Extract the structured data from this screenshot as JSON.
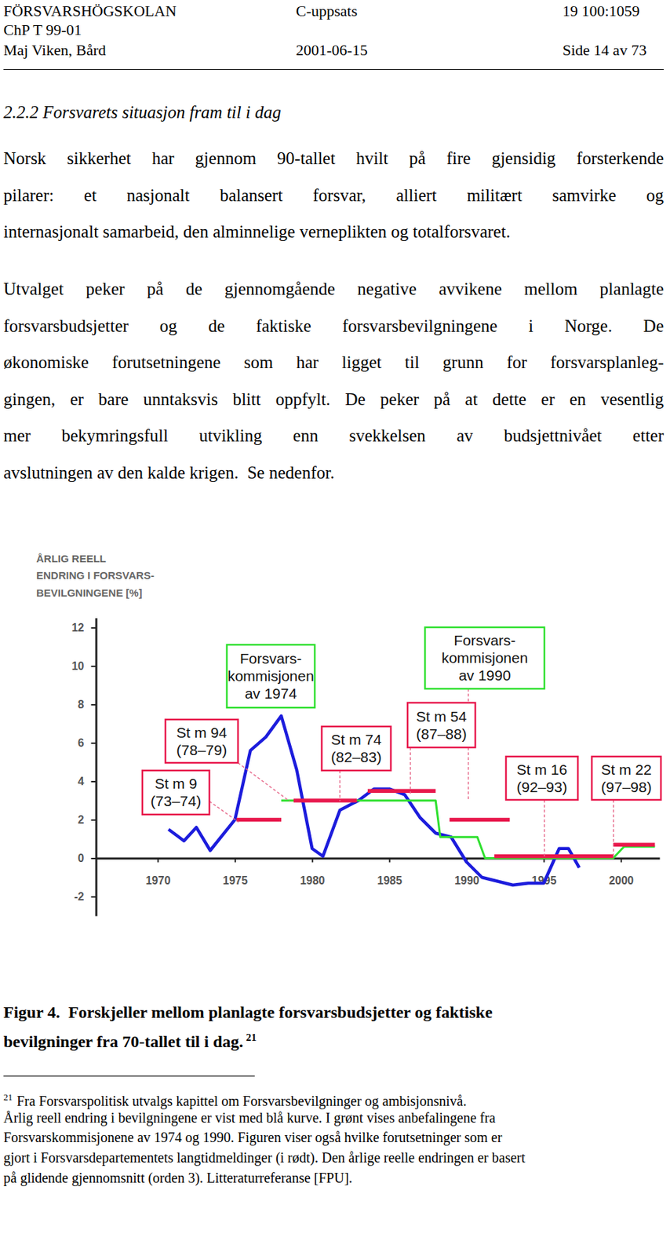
{
  "header": {
    "left": [
      "FÖRSVARSHÖGSKOLAN",
      "ChP T 99-01",
      "Maj Viken, Bård"
    ],
    "center": [
      "C-uppsats",
      "2001-06-15"
    ],
    "right": [
      "19 100:1059",
      "Side 14 av 73"
    ]
  },
  "heading": "2.2.2 Forsvarets situasjon fram til i dag",
  "paragraphs": [
    [
      "Norsk sikkerhet har gjennom 90-tallet hvilt på fire gjensidig forsterkende",
      "pilarer: et nasjonalt balansert forsvar, alliert militært samvirke og",
      "internasjonalt samarbeid, den alminnelige verneplikten og totalforsvaret."
    ],
    [
      "Utvalget peker på de gjennomgående negative avvikene mellom planlagte",
      "forsvarsbudsjetter og de faktiske forsvarsbevilgningene i Norge. De",
      "økonomiske forutsetningene som har ligget til grunn for forsvarsplanleg-",
      "gingen, er bare unntaksvis blitt oppfylt. De peker på at dette er en vesentlig",
      "mer bekymringsfull utvikling enn svekkelsen av budsjettnivået etter",
      "avslutningen av den kalde krigen.  Se nedenfor."
    ]
  ],
  "chart_data": {
    "type": "line",
    "title": [
      "ÅRLIG REELL",
      "ENDRING I FORSVARS-",
      "BEVILGNINGENE [%]"
    ],
    "xlim": [
      1966,
      2002.5
    ],
    "xticks": [
      1970,
      1975,
      1980,
      1985,
      1990,
      1995,
      2000
    ],
    "ylim": [
      -3,
      12.5
    ],
    "yticks": [
      -2,
      0,
      2,
      4,
      6,
      8,
      10,
      12
    ],
    "grid": false,
    "series": [
      {
        "color": "#1c1cdc",
        "x": [
          1970.7,
          1971.7,
          1972.5,
          1973.4,
          1975,
          1976,
          1977,
          1978,
          1979,
          1980,
          1980.7,
          1981.8,
          1983,
          1984,
          1985,
          1986,
          1987,
          1988,
          1989,
          1990,
          1991,
          1992,
          1993,
          1994,
          1995,
          1996,
          1996.6,
          1997.3
        ],
        "values": [
          1.5,
          0.9,
          1.6,
          0.4,
          2.0,
          5.6,
          6.3,
          7.4,
          4.6,
          0.5,
          0.1,
          2.5,
          3.0,
          3.6,
          3.6,
          3.3,
          2.1,
          1.3,
          1.1,
          -0.2,
          -1.0,
          -1.2,
          -1.4,
          -1.3,
          -1.3,
          0.5,
          0.5,
          -0.5
        ]
      },
      {
        "color": "#2fe02f",
        "x": [
          1978.0,
          1988.0,
          1988.3,
          1990.7,
          1991.2,
          1999.5,
          2000.2,
          2002.2
        ],
        "values": [
          3.0,
          3.0,
          1.1,
          1.1,
          0.0,
          0.0,
          0.6,
          0.6
        ]
      },
      {
        "color": "#e8194d",
        "x": [
          1975.1,
          1978.0,
          null,
          1978.8,
          1982.9,
          null,
          1983.6,
          1988.0,
          null,
          1988.9,
          1992.8,
          null,
          1991.8,
          1999.5,
          null,
          1999.5,
          2002.2
        ],
        "values": [
          2.0,
          2.0,
          null,
          3.0,
          3.0,
          null,
          3.5,
          3.5,
          null,
          2.0,
          2.0,
          null,
          0.1,
          0.1,
          null,
          0.7,
          0.7
        ]
      }
    ],
    "annotations": [
      {
        "lines": [
          "St m 9",
          "(73–74)"
        ],
        "color": "#e8194d"
      },
      {
        "lines": [
          "St m 94",
          "(78–79)"
        ],
        "color": "#e8194d"
      },
      {
        "lines": [
          "Forsvars-",
          "kommisjonen",
          "av 1974"
        ],
        "color": "#2fe02f"
      },
      {
        "lines": [
          "St m 74",
          "(82–83)"
        ],
        "color": "#e8194d"
      },
      {
        "lines": [
          "Forsvars-",
          "kommisjonen",
          "av 1990"
        ],
        "color": "#2fe02f"
      },
      {
        "lines": [
          "St m 54",
          "(87–88)"
        ],
        "color": "#e8194d"
      },
      {
        "lines": [
          "St m 16",
          "(92–93)"
        ],
        "color": "#e8194d"
      },
      {
        "lines": [
          "St m 22",
          "(97–98)"
        ],
        "color": "#e8194d"
      }
    ]
  },
  "caption": {
    "lines": [
      "Figur 4.  Forskjeller mellom planlagte forsvarsbudsjetter og faktiske",
      "bevilgninger fra 70-tallet til i dag."
    ],
    "footnote_ref": "21"
  },
  "footnote": {
    "marker": "21",
    "lines": [
      "Fra Forsvarspolitisk utvalgs kapittel om Forsvarsbevilgninger og ambisjonsnivå.",
      "Årlig reell endring i bevilgningene er vist med blå kurve. I grønt vises anbefalingene fra",
      "Forsvarskommisjonene av 1974 og 1990. Figuren viser også hvilke forutsetninger som er",
      "gjort i Forsvarsdepartementets langtidmeldinger (i rødt). Den årlige reelle endringen er basert",
      "på glidende gjennomsnitt (orden 3). Litteraturreferanse [FPU]."
    ]
  }
}
